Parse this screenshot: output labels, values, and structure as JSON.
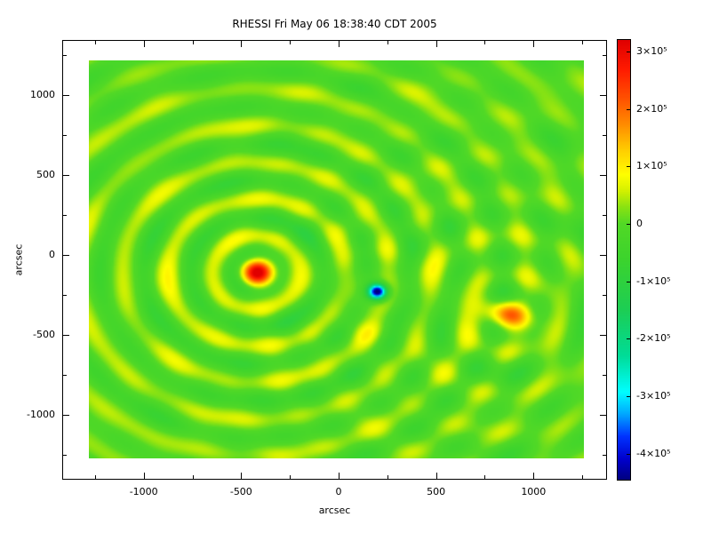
{
  "chart_data": {
    "type": "heatmap",
    "title": "RHESSI Fri May 06 18:38:40 CDT 2005",
    "xlabel": "arcsec",
    "ylabel": "arcsec",
    "x_range": [
      -1418,
      1377
    ],
    "y_range": [
      -1406,
      1344
    ],
    "image_extent": {
      "x": [
        -1281,
        1258
      ],
      "y": [
        -1272,
        1216
      ]
    },
    "x_ticks": [
      {
        "value": -1000,
        "label": "-1000"
      },
      {
        "value": -500,
        "label": "-500"
      },
      {
        "value": 0,
        "label": "0"
      },
      {
        "value": 500,
        "label": "500"
      },
      {
        "value": 1000,
        "label": "1000"
      }
    ],
    "y_ticks": [
      {
        "value": 1000,
        "label": "1000"
      },
      {
        "value": 500,
        "label": "500"
      },
      {
        "value": 0,
        "label": "0"
      },
      {
        "value": -500,
        "label": "-500"
      },
      {
        "value": -1000,
        "label": "-1000"
      }
    ],
    "minor_tick_step": 250,
    "colorbar": {
      "max": 320000,
      "min": -445000,
      "ticks": [
        {
          "value": 300000,
          "label": "3×10⁵"
        },
        {
          "value": 200000,
          "label": "2×10⁵"
        },
        {
          "value": 100000,
          "label": "1×10⁵"
        },
        {
          "value": 0,
          "label": "0"
        },
        {
          "value": -100000,
          "label": "-1×10⁵"
        },
        {
          "value": -200000,
          "label": "-2×10⁵"
        },
        {
          "value": -300000,
          "label": "-3×10⁵"
        },
        {
          "value": -400000,
          "label": "-4×10⁵"
        }
      ],
      "stops": [
        {
          "v": -445000,
          "color": "#000080"
        },
        {
          "v": -410000,
          "color": "#0000cc"
        },
        {
          "v": -370000,
          "color": "#0033ff"
        },
        {
          "v": -330000,
          "color": "#00aaff"
        },
        {
          "v": -292000,
          "color": "#00ffff"
        },
        {
          "v": -230000,
          "color": "#00dd99"
        },
        {
          "v": -150000,
          "color": "#1dce55"
        },
        {
          "v": -60000,
          "color": "#3dd42d"
        },
        {
          "v": 0,
          "color": "#52d926"
        },
        {
          "v": 30000,
          "color": "#8ce312"
        },
        {
          "v": 60000,
          "color": "#d9f200"
        },
        {
          "v": 85000,
          "color": "#ffff00"
        },
        {
          "v": 125000,
          "color": "#ffd200"
        },
        {
          "v": 170000,
          "color": "#ff9100"
        },
        {
          "v": 220000,
          "color": "#ff5000"
        },
        {
          "v": 270000,
          "color": "#ff1a00"
        },
        {
          "v": 320000,
          "color": "#e00000"
        }
      ]
    },
    "sources": [
      {
        "name": "primary-source",
        "x": -420,
        "y": -110,
        "amp": 260000,
        "sigma": 65,
        "ring_amp": 80000,
        "ring_period": 230,
        "ring_decay": 1600
      },
      {
        "name": "negative-artifact",
        "x": 200,
        "y": -230,
        "amp": -450000,
        "sigma": 32,
        "ring_amp": -15000,
        "ring_period": 180,
        "ring_decay": 350
      },
      {
        "name": "secondary-source",
        "x": 870,
        "y": -370,
        "amp": 160000,
        "sigma_x": 110,
        "sigma_y": 60,
        "rot": -20,
        "ring_amp": 50000,
        "ring_period": 250,
        "ring_decay": 900
      }
    ],
    "texture": {
      "amp": 20000,
      "scale": 110
    }
  }
}
